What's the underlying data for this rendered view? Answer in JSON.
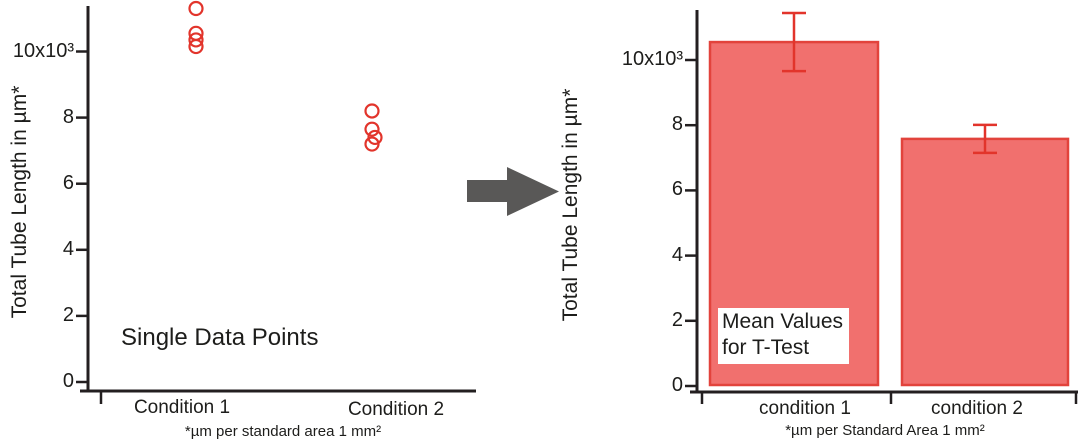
{
  "colors": {
    "marker_red": "#e2342b",
    "bar_fill": "#f1706e",
    "bar_border": "#e2433c",
    "error_red": "#e2342b",
    "axis": "#231f20",
    "arrow": "#595857",
    "text": "#1d1d1b",
    "annotation_box_bg": "#ffffff"
  },
  "chart_data": [
    {
      "type": "scatter",
      "annotation": "Single Data Points",
      "ylabel": "Total Tube Length in µm*",
      "footnote": "*µm per standard area 1 mm²",
      "categories": [
        "Condition 1",
        "Condition 2"
      ],
      "yticks": [
        {
          "value": 0,
          "label": "0"
        },
        {
          "value": 2,
          "label": "2"
        },
        {
          "value": 4,
          "label": "4"
        },
        {
          "value": 6,
          "label": "6"
        },
        {
          "value": 8,
          "label": "8"
        },
        {
          "value": 10,
          "label": "10x10³"
        }
      ],
      "ylim": [
        0,
        11.6
      ],
      "y_unit": "x10³ µm",
      "marker": "open-circle",
      "series": [
        {
          "name": "Condition 1",
          "values": [
            11.3,
            10.55,
            10.35,
            10.15
          ]
        },
        {
          "name": "Condition 2",
          "values": [
            8.2,
            7.65,
            7.4,
            7.2
          ]
        }
      ]
    },
    {
      "type": "bar",
      "annotation_lines": [
        "Mean Values",
        "for T-Test"
      ],
      "ylabel": "Total Tube Length in µm*",
      "footnote": "*µm per Standard Area 1 mm²",
      "categories": [
        "condition 1",
        "condition 2"
      ],
      "yticks": [
        {
          "value": 0,
          "label": "0"
        },
        {
          "value": 2,
          "label": "2"
        },
        {
          "value": 4,
          "label": "4"
        },
        {
          "value": 6,
          "label": "6"
        },
        {
          "value": 8,
          "label": "8"
        },
        {
          "value": 10,
          "label": "10x10³"
        }
      ],
      "ylim": [
        0,
        11.6
      ],
      "y_unit": "x10³ µm",
      "values": [
        10.55,
        7.58
      ],
      "errors": [
        0.89,
        0.43
      ]
    }
  ]
}
